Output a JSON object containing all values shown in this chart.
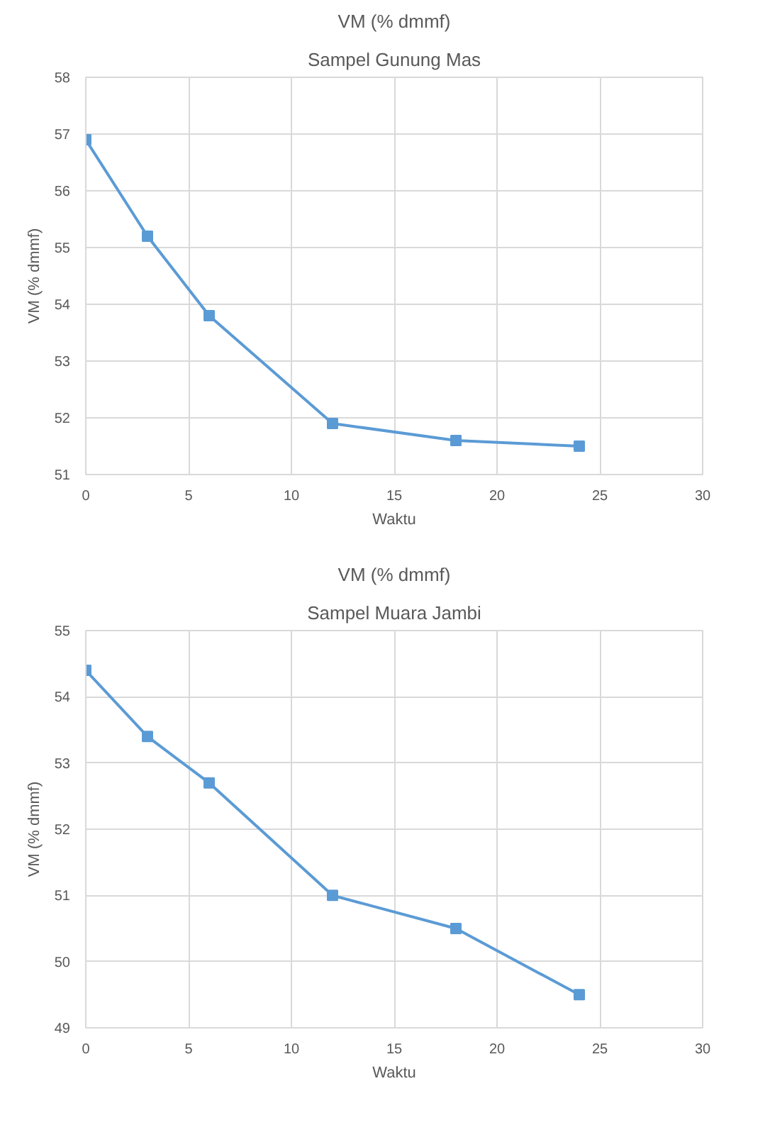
{
  "chart_data": [
    {
      "type": "line",
      "title": "VM (% dmmf)",
      "subtitle": "Sampel Gunung Mas",
      "xlabel": "Waktu",
      "ylabel": "VM (% dmmf)",
      "x": [
        0,
        3,
        6,
        12,
        18,
        24
      ],
      "series": [
        {
          "color": "#5b9bd5",
          "values": [
            56.9,
            55.2,
            53.8,
            51.9,
            51.6,
            51.5
          ]
        }
      ],
      "xlim": [
        0,
        30
      ],
      "xticks": [
        0,
        5,
        10,
        15,
        20,
        25,
        30
      ],
      "ylim": [
        51,
        58
      ],
      "yticks": [
        51,
        52,
        53,
        54,
        55,
        56,
        57,
        58
      ],
      "grid": true,
      "marker": "square",
      "line_style": "solid"
    },
    {
      "type": "line",
      "title": "VM (% dmmf)",
      "subtitle": "Sampel Muara Jambi",
      "xlabel": "Waktu",
      "ylabel": "VM (% dmmf)",
      "x": [
        0,
        3,
        6,
        12,
        18,
        24
      ],
      "series": [
        {
          "color": "#5b9bd5",
          "values": [
            54.4,
            53.4,
            52.7,
            51.0,
            50.5,
            49.5
          ]
        }
      ],
      "xlim": [
        0,
        30
      ],
      "xticks": [
        0,
        5,
        10,
        15,
        20,
        25,
        30
      ],
      "ylim": [
        49,
        55
      ],
      "yticks": [
        49,
        50,
        51,
        52,
        53,
        54,
        55
      ],
      "grid": true,
      "marker": "square",
      "line_style": "solid"
    }
  ]
}
